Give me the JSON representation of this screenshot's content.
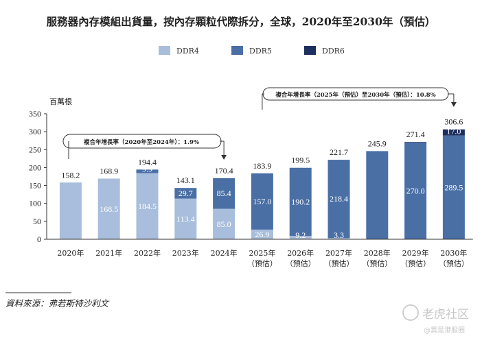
{
  "chart_data": {
    "type": "bar",
    "stacked": true,
    "title": "服務器內存模組出貨量，按內存顆粒代際拆分，全球，2020年至2030年（預估）",
    "ylabel": "百萬根",
    "ylim": [
      0,
      350
    ],
    "yticks": [
      0,
      50,
      100,
      150,
      200,
      250,
      300,
      350
    ],
    "categories": [
      [
        "2020年"
      ],
      [
        "2021年"
      ],
      [
        "2022年"
      ],
      [
        "2023年"
      ],
      [
        "2024年"
      ],
      [
        "2025年",
        "（預估）"
      ],
      [
        "2026年",
        "（預估）"
      ],
      [
        "2027年",
        "（預估）"
      ],
      [
        "2028年",
        "（預估）"
      ],
      [
        "2029年",
        "（預估）"
      ],
      [
        "2030年",
        "（預估）"
      ]
    ],
    "series": [
      {
        "name": "DDR4",
        "color": "#a8bedc",
        "values": [
          158.2,
          168.5,
          184.5,
          113.4,
          85.0,
          26.9,
          9.2,
          3.3,
          0,
          0,
          0
        ],
        "labels": [
          "",
          "168.5",
          "184.5",
          "113.4",
          "85.0",
          "26.9",
          "9.2",
          "3.3",
          "",
          "",
          ""
        ]
      },
      {
        "name": "DDR5",
        "color": "#4a6fa5",
        "values": [
          0,
          0.4,
          9.9,
          29.7,
          85.4,
          157.0,
          190.2,
          218.4,
          245.9,
          270.0,
          289.5
        ],
        "labels": [
          "",
          "0.4",
          "9.9",
          "29.7",
          "85.4",
          "157.0",
          "190.2",
          "218.4",
          "",
          "270.0",
          "289.5"
        ]
      },
      {
        "name": "DDR6",
        "color": "#1d2f5e",
        "values": [
          0,
          0,
          0,
          0,
          0,
          0,
          0,
          0,
          0,
          1.4,
          17.0
        ],
        "labels": [
          "",
          "",
          "",
          "",
          "",
          "",
          "",
          "",
          "",
          "1.4",
          "17.0"
        ]
      }
    ],
    "totals": [
      "158.2",
      "168.9",
      "194.4",
      "143.1",
      "170.4",
      "183.9",
      "199.5",
      "221.7",
      "245.9",
      "271.4",
      "306.6"
    ],
    "annotations": [
      {
        "text": "複合年增長率（2020年至2024年）：1.9%",
        "from": 0,
        "to": 4
      },
      {
        "text": "複合年增長率（2025年（預估）至2030年（預估）：10.8%",
        "from": 5,
        "to": 10
      }
    ],
    "legend": "top",
    "grid": false
  },
  "source": "資料來源：弗若斯特沙利文",
  "watermark": {
    "main": "老虎社区",
    "sub": "@異是港股圈"
  }
}
